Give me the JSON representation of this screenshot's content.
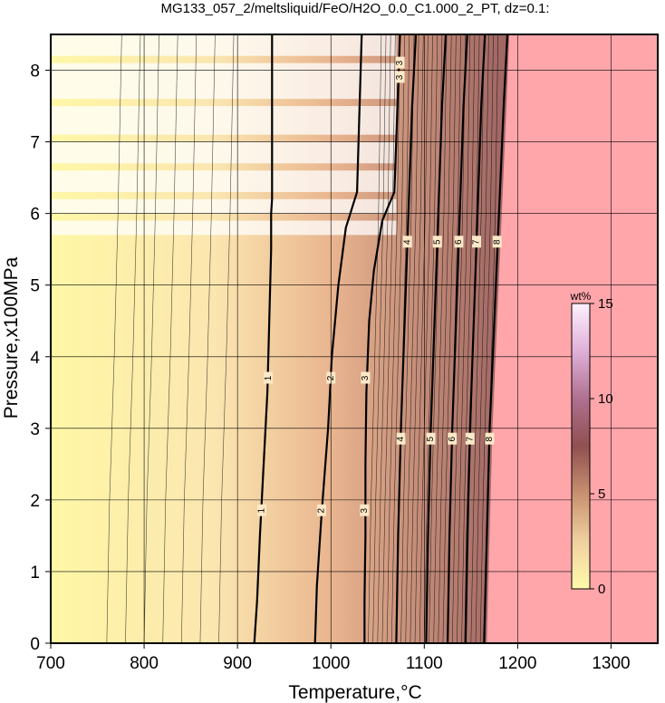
{
  "chart_data": {
    "type": "heatmap",
    "title": "MG133_057_2/meltsliquid/FeO/H2O_0.0_C1.000_2_PT, dz=0.1:",
    "xlabel": "Temperature,°C",
    "ylabel": "Pressure,x100MPa",
    "xlim": [
      700,
      1350
    ],
    "ylim": [
      0,
      8.5
    ],
    "xticks": [
      700,
      800,
      900,
      1000,
      1100,
      1200,
      1300
    ],
    "yticks": [
      0,
      1,
      2,
      3,
      4,
      5,
      6,
      7,
      8
    ],
    "grid": true,
    "colorbar": {
      "label": "wt%",
      "range": [
        0,
        15
      ],
      "ticks": [
        0,
        5,
        10,
        15
      ],
      "colors": [
        "#fffaaa",
        "#f0d0a0",
        "#c89070",
        "#905050",
        "#b07090",
        "#e0b0d8",
        "#fff0ff"
      ]
    },
    "above_liquidus_color": "#ffa6ab",
    "contours": [
      {
        "level": 1,
        "points": [
          [
            918,
            0
          ],
          [
            921,
            0.6
          ],
          [
            924,
            1.5
          ],
          [
            928,
            2.5
          ],
          [
            932,
            3.5
          ],
          [
            934,
            4.5
          ],
          [
            936,
            5.5
          ],
          [
            936,
            6.0
          ],
          [
            937,
            6.2
          ],
          [
            937,
            8.5
          ]
        ]
      },
      {
        "level": 2,
        "points": [
          [
            983,
            0
          ],
          [
            985,
            0.8
          ],
          [
            990,
            1.8
          ],
          [
            997,
            3.0
          ],
          [
            1001,
            4.0
          ],
          [
            1008,
            5.0
          ],
          [
            1016,
            5.8
          ],
          [
            1028,
            6.3
          ],
          [
            1033,
            8.5
          ]
        ]
      },
      {
        "level": 3,
        "points": [
          [
            1036,
            0
          ],
          [
            1036,
            0.6
          ],
          [
            1037,
            1.5
          ],
          [
            1037,
            2.5
          ],
          [
            1038,
            3.5
          ],
          [
            1041,
            4.5
          ],
          [
            1046,
            5.2
          ],
          [
            1055,
            5.9
          ],
          [
            1068,
            6.3
          ],
          [
            1074,
            8.5
          ]
        ]
      },
      {
        "level": 4,
        "points": [
          [
            1070,
            0
          ],
          [
            1072,
            1.5
          ],
          [
            1075,
            3.0
          ],
          [
            1079,
            4.5
          ],
          [
            1083,
            6.0
          ],
          [
            1087,
            7.5
          ],
          [
            1091,
            8.5
          ]
        ]
      },
      {
        "level": 5,
        "points": [
          [
            1102,
            0
          ],
          [
            1104,
            1.5
          ],
          [
            1107,
            3.0
          ],
          [
            1111,
            4.5
          ],
          [
            1115,
            6.0
          ],
          [
            1119,
            7.5
          ],
          [
            1123,
            8.5
          ]
        ]
      },
      {
        "level": 6,
        "points": [
          [
            1125,
            0
          ],
          [
            1127,
            1.5
          ],
          [
            1130,
            3.0
          ],
          [
            1134,
            4.5
          ],
          [
            1138,
            6.0
          ],
          [
            1142,
            7.5
          ],
          [
            1146,
            8.5
          ]
        ]
      },
      {
        "level": 7,
        "points": [
          [
            1144,
            0
          ],
          [
            1146,
            1.5
          ],
          [
            1149,
            3.0
          ],
          [
            1153,
            4.5
          ],
          [
            1157,
            6.0
          ],
          [
            1161,
            7.5
          ],
          [
            1165,
            8.5
          ]
        ]
      },
      {
        "level": 8,
        "points": [
          [
            1164,
            0
          ],
          [
            1167,
            1.5
          ],
          [
            1170,
            3.0
          ],
          [
            1175,
            4.5
          ],
          [
            1180,
            6.0
          ],
          [
            1185,
            7.5
          ],
          [
            1189,
            8.5
          ]
        ]
      }
    ],
    "liquidus": [
      [
        1167,
        0
      ],
      [
        1170,
        1.5
      ],
      [
        1173,
        3.0
      ],
      [
        1178,
        4.5
      ],
      [
        1183,
        6.0
      ],
      [
        1188,
        7.5
      ],
      [
        1191,
        8.5
      ]
    ],
    "contour_labels": [
      {
        "text": "1",
        "x": 926,
        "y": 1.85
      },
      {
        "text": "2",
        "x": 990,
        "y": 1.85
      },
      {
        "text": "3",
        "x": 1036,
        "y": 1.85
      },
      {
        "text": "1",
        "x": 933,
        "y": 3.7
      },
      {
        "text": "2",
        "x": 1000,
        "y": 3.7
      },
      {
        "text": "3",
        "x": 1037,
        "y": 3.7
      },
      {
        "text": "4",
        "x": 1075,
        "y": 2.85
      },
      {
        "text": "5",
        "x": 1107,
        "y": 2.85
      },
      {
        "text": "6",
        "x": 1130,
        "y": 2.85
      },
      {
        "text": "7",
        "x": 1149,
        "y": 2.85
      },
      {
        "text": "8",
        "x": 1170,
        "y": 2.85
      },
      {
        "text": "4",
        "x": 1082,
        "y": 5.6
      },
      {
        "text": "5",
        "x": 1114,
        "y": 5.6
      },
      {
        "text": "6",
        "x": 1137,
        "y": 5.6
      },
      {
        "text": "7",
        "x": 1156,
        "y": 5.6
      },
      {
        "text": "8",
        "x": 1178,
        "y": 5.6
      },
      {
        "text": "3",
        "x": 1074,
        "y": 8.1
      },
      {
        "text": "3",
        "x": 1074,
        "y": 7.9
      }
    ]
  }
}
